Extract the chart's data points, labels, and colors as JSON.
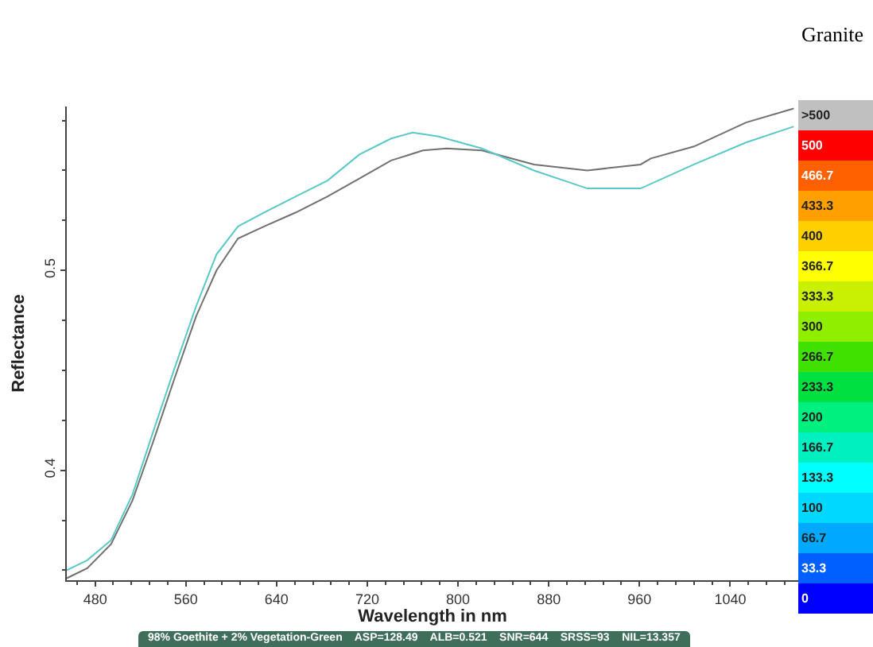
{
  "chart_data": {
    "type": "line",
    "title": "Granite",
    "xlabel": "Wavelength in nm",
    "ylabel": "Reflectance",
    "xlim": [
      455,
      1100
    ],
    "xticks": [
      480,
      560,
      640,
      720,
      800,
      880,
      960,
      1040
    ],
    "ylim": [
      0.345,
      0.582
    ],
    "yticks": [
      0.4,
      0.5
    ],
    "grid": false,
    "marker": "none",
    "line_style": "solid",
    "series": [
      {
        "color": "#707070",
        "x": [
          455,
          473,
          494,
          513,
          531,
          550,
          569,
          587,
          606,
          629,
          657,
          685,
          713,
          741,
          769,
          790,
          821,
          867,
          914,
          961,
          970,
          1008,
          1054,
          1096
        ],
        "values": [
          0.346,
          0.351,
          0.363,
          0.385,
          0.414,
          0.446,
          0.477,
          0.5,
          0.516,
          0.522,
          0.529,
          0.537,
          0.546,
          0.555,
          0.56,
          0.561,
          0.56,
          0.553,
          0.55,
          0.553,
          0.556,
          0.562,
          0.574,
          0.581
        ]
      },
      {
        "color": "#5bc8c8",
        "x": [
          455,
          473,
          494,
          513,
          531,
          550,
          569,
          587,
          606,
          629,
          657,
          685,
          713,
          741,
          760,
          783,
          821,
          867,
          914,
          961,
          1008,
          1054,
          1096
        ],
        "values": [
          0.35,
          0.355,
          0.365,
          0.388,
          0.419,
          0.451,
          0.482,
          0.508,
          0.522,
          0.529,
          0.537,
          0.545,
          0.558,
          0.566,
          0.569,
          0.567,
          0.561,
          0.55,
          0.541,
          0.541,
          0.553,
          0.564,
          0.572
        ]
      }
    ],
    "annotations": [
      "98% Goethite + 2% Vegetation-Green    ASP=128.49    ALB=0.521    SNR=644    SRSS=93    NIL=13.357",
      ">500",
      "500",
      "466.7",
      "433.3",
      "400",
      "366.7",
      "333.3",
      "300",
      "266.7",
      "233.3",
      "200",
      "166.7",
      "133.3",
      "100",
      "66.7",
      "33.3",
      "0"
    ]
  }
}
